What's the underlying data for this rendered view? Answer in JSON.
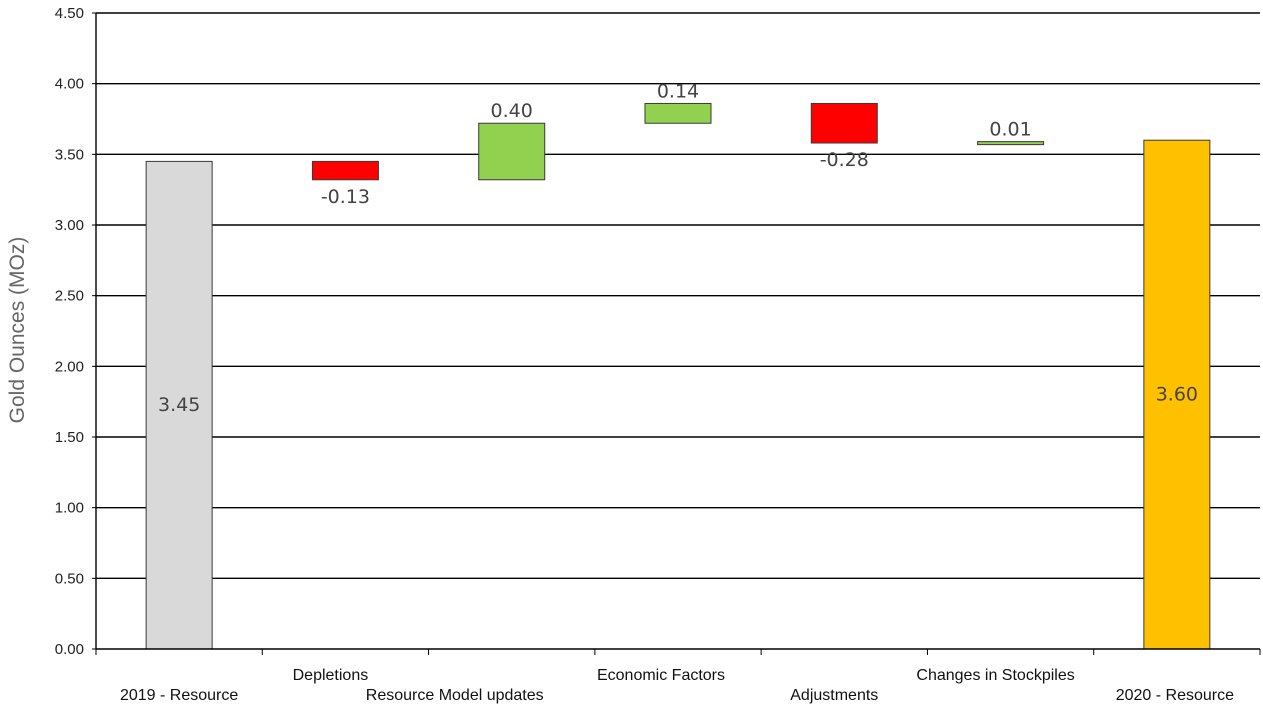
{
  "chart_data": {
    "type": "bar",
    "subtype": "waterfall",
    "ylabel": "Gold Ounces (MOz)",
    "ylim": [
      0,
      4.5
    ],
    "yticks": [
      "0.00",
      "0.50",
      "1.00",
      "1.50",
      "2.00",
      "2.50",
      "3.00",
      "3.50",
      "4.00",
      "4.50"
    ],
    "grid": true,
    "categories": [
      "2019 - Resource",
      "Depletions",
      "Resource Model updates",
      "Economic Factors",
      "Adjustments",
      "Changes in Stockpiles",
      "2020 - Resource"
    ],
    "values": [
      3.45,
      -0.13,
      0.4,
      0.14,
      -0.28,
      0.01,
      3.6
    ],
    "value_labels": [
      "3.45",
      "-0.13",
      "0.40",
      "0.14",
      "-0.28",
      "0.01",
      "3.60"
    ],
    "kinds": [
      "total",
      "delta",
      "delta",
      "delta",
      "delta",
      "delta",
      "total"
    ],
    "colors": {
      "start_total": "#d9d9d9",
      "end_total": "#ffc000",
      "increase": "#92d050",
      "decrease": "#ff0000",
      "bar_outline": "#3a3a3a",
      "gridline": "#000000"
    }
  }
}
